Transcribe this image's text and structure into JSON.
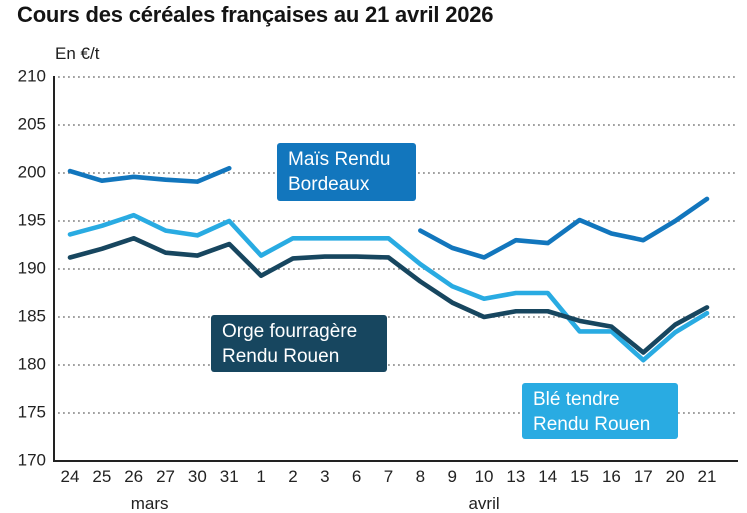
{
  "title": "Cours des céréales françaises au 21 avril 2026",
  "axis": {
    "unit_label": "En €/t",
    "y_ticks": [
      210,
      205,
      200,
      195,
      190,
      185,
      180,
      175,
      170
    ],
    "x_labels": [
      "24",
      "25",
      "26",
      "27",
      "30",
      "31",
      "1",
      "2",
      "3",
      "6",
      "7",
      "8",
      "9",
      "10",
      "13",
      "14",
      "15",
      "16",
      "17",
      "20",
      "21"
    ],
    "month_labels": [
      {
        "label": "mars",
        "x_index": 2.5
      },
      {
        "label": "avril",
        "x_index": 13
      }
    ]
  },
  "chart_data": {
    "type": "line",
    "categories": [
      "24",
      "25",
      "26",
      "27",
      "30",
      "31",
      "1",
      "2",
      "3",
      "6",
      "7",
      "8",
      "9",
      "10",
      "13",
      "14",
      "15",
      "16",
      "17",
      "20",
      "21"
    ],
    "ylim": [
      170,
      210
    ],
    "grid": "dotted-horizontal",
    "series": [
      {
        "id": "ble-tendre",
        "name": "Blé tendre Rendu Rouen",
        "color": "#29ABE2",
        "values": [
          193.6,
          194.5,
          195.6,
          194.0,
          193.5,
          195.0,
          191.4,
          193.2,
          193.2,
          193.2,
          193.2,
          190.5,
          188.2,
          186.9,
          187.5,
          187.5,
          183.5,
          183.5,
          180.5,
          183.4,
          185.4
        ]
      },
      {
        "id": "orge-fourragere",
        "name": "Orge fourragère Rendu Rouen",
        "color": "#17465F",
        "values": [
          191.2,
          192.1,
          193.2,
          191.7,
          191.4,
          192.6,
          189.3,
          191.1,
          191.3,
          191.3,
          191.2,
          188.7,
          186.5,
          185.0,
          185.6,
          185.6,
          184.6,
          184.0,
          181.3,
          184.2,
          186.0
        ]
      },
      {
        "id": "mais",
        "name": "Maïs Rendu Bordeaux",
        "color": "#1276BD",
        "values": [
          200.2,
          199.2,
          199.6,
          199.3,
          199.1,
          200.5,
          null,
          null,
          null,
          null,
          null,
          194.0,
          192.2,
          191.2,
          193.0,
          192.7,
          195.1,
          193.7,
          193.0,
          195.0,
          197.3
        ]
      }
    ]
  },
  "labels": {
    "mais": {
      "line1": "Maïs Rendu",
      "line2": "Bordeaux",
      "color": "#1276BD"
    },
    "orge": {
      "line1": "Orge fourragère",
      "line2": "Rendu Rouen",
      "color": "#17465F"
    },
    "ble": {
      "line1": "Blé tendre",
      "line2": "Rendu Rouen",
      "color": "#29ABE2"
    }
  }
}
